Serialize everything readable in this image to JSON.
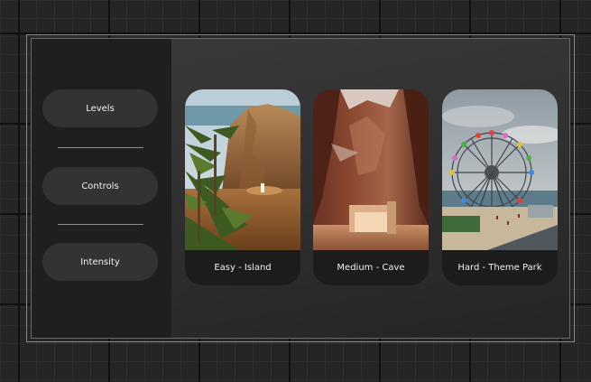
{
  "menu": {
    "items": [
      {
        "label": "Levels"
      },
      {
        "label": "Controls"
      },
      {
        "label": "Intensity"
      }
    ]
  },
  "cards": [
    {
      "label": "Easy - Island",
      "image": "desert-island-image"
    },
    {
      "label": "Medium - Cave",
      "image": "canyon-cave-image"
    },
    {
      "label": "Hard - Theme Park",
      "image": "ferris-wheel-theme-park-image"
    }
  ],
  "colors": {
    "background": "#252526",
    "sidebar": "#1f1f1f",
    "button": "#333334",
    "card": "#1c1c1c",
    "text": "#f2f2f2"
  }
}
